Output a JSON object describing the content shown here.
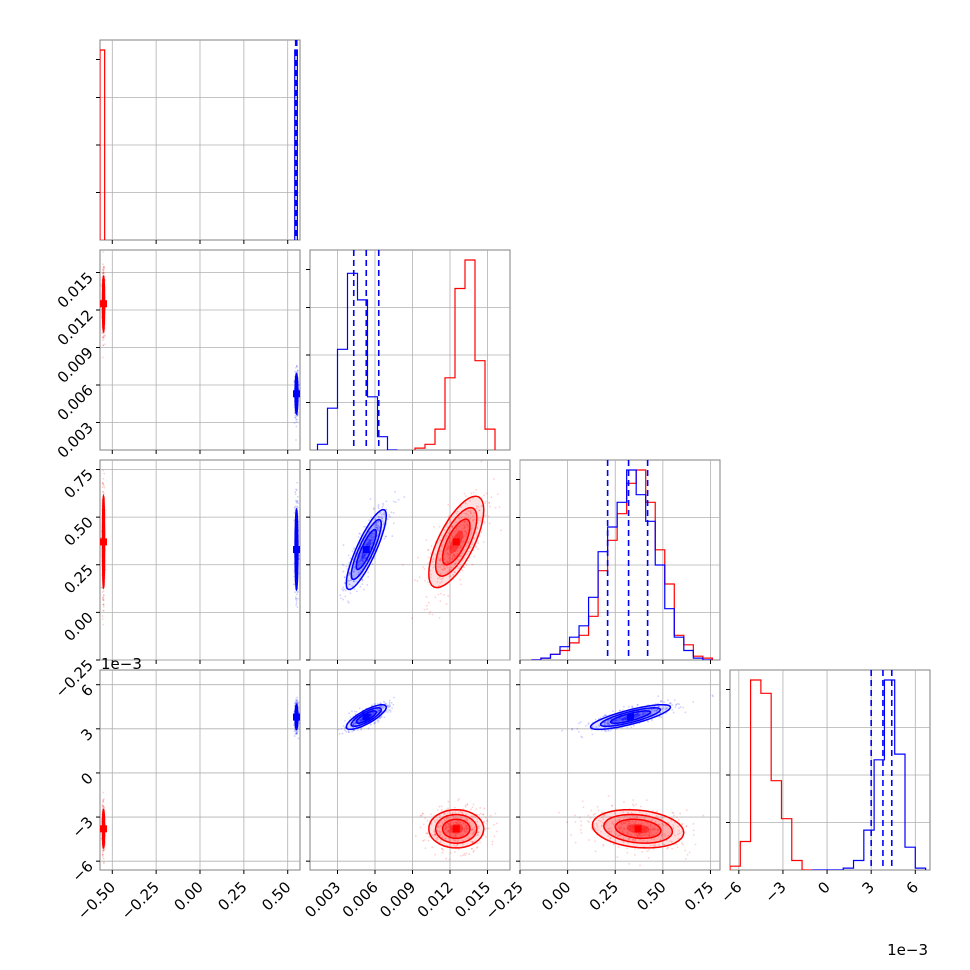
{
  "colors": {
    "series_a": "#ff0000",
    "series_b": "#0000ff",
    "grid": "#b0b0b0",
    "frame": "#808080"
  },
  "chart_data": {
    "type": "corner",
    "grid": true,
    "parameters": [
      {
        "range": [
          -0.57,
          0.57
        ],
        "ticks": [
          -0.5,
          -0.25,
          0.0,
          0.25,
          0.5
        ],
        "tick_labels": [
          "−0.50",
          "−0.25",
          "0.00",
          "0.25",
          "0.50"
        ],
        "offset_label": ""
      },
      {
        "range": [
          0.0008,
          0.0168
        ],
        "ticks": [
          0.003,
          0.006,
          0.009,
          0.012,
          0.015
        ],
        "tick_labels": [
          "0.003",
          "0.006",
          "0.009",
          "0.012",
          "0.015"
        ],
        "offset_label": ""
      },
      {
        "range": [
          -0.25,
          0.8
        ],
        "ticks": [
          -0.25,
          0.0,
          0.25,
          0.5,
          0.75
        ],
        "tick_labels": [
          "−0.25",
          "0.00",
          "0.25",
          "0.50",
          "0.75"
        ],
        "offset_label": ""
      },
      {
        "range": [
          -6.6,
          7.0
        ],
        "ticks": [
          -6,
          -3,
          0,
          3,
          6
        ],
        "tick_labels": [
          "−6",
          "−3",
          "0",
          "3",
          "6"
        ],
        "offset_label": "1e−3"
      }
    ],
    "series": [
      {
        "color": "#ff0000",
        "means": [
          -0.55,
          0.0125,
          0.37,
          -3.8
        ],
        "sds": [
          0.003,
          0.0011,
          0.12,
          0.65
        ],
        "cross": {
          "1-2": 0.7,
          "1-3": 0.0,
          "2-3": -0.2
        },
        "hist": [
          {
            "edges": [
              -0.57,
              -0.5435
            ],
            "counts": [
              1.0
            ]
          },
          {
            "edges": [
              0.0092,
              0.01,
              0.0108,
              0.0116,
              0.0124,
              0.0132,
              0.014,
              0.0148,
              0.0156
            ],
            "counts": [
              0.01,
              0.03,
              0.11,
              0.38,
              0.85,
              1.0,
              0.47,
              0.11
            ]
          },
          {
            "edges": [
              -0.19,
              -0.14,
              -0.09,
              -0.04,
              0.01,
              0.06,
              0.11,
              0.16,
              0.21,
              0.26,
              0.31,
              0.36,
              0.41,
              0.46,
              0.51,
              0.56,
              0.61,
              0.66,
              0.71,
              0.76
            ],
            "counts": [
              0.0,
              0.01,
              0.03,
              0.05,
              0.09,
              0.13,
              0.23,
              0.47,
              0.63,
              0.77,
              0.93,
              1.0,
              0.83,
              0.58,
              0.4,
              0.13,
              0.08,
              0.02,
              0.01
            ]
          },
          {
            "edges": [
              -6.6,
              -5.9,
              -5.2,
              -4.5,
              -3.8,
              -3.1,
              -2.4,
              -1.7,
              -1.0
            ],
            "counts": [
              0.02,
              0.15,
              1.0,
              0.93,
              0.47,
              0.27,
              0.05,
              0.0
            ]
          }
        ]
      },
      {
        "color": "#0000ff",
        "means": [
          0.55,
          0.0053,
          0.33,
          3.8
        ],
        "sds": [
          0.004,
          0.0008,
          0.105,
          0.42
        ],
        "cross": {
          "1-2": 0.85,
          "1-3": 0.8,
          "2-3": 0.8
        },
        "hist": [
          {
            "edges": [
              0.54,
              0.555
            ],
            "counts": [
              1.0
            ]
          },
          {
            "edges": [
              0.0014,
              0.0022,
              0.003,
              0.0038,
              0.0046,
              0.0054,
              0.0062,
              0.007,
              0.0078
            ],
            "counts": [
              0.03,
              0.22,
              0.53,
              0.93,
              0.79,
              0.28,
              0.07,
              0.0
            ]
          },
          {
            "edges": [
              -0.19,
              -0.14,
              -0.09,
              -0.04,
              0.01,
              0.06,
              0.11,
              0.16,
              0.21,
              0.26,
              0.31,
              0.36,
              0.41,
              0.46,
              0.51,
              0.56,
              0.61,
              0.66,
              0.71,
              0.76
            ],
            "counts": [
              0.0,
              0.01,
              0.03,
              0.07,
              0.12,
              0.18,
              0.33,
              0.57,
              0.7,
              0.83,
              1.0,
              0.87,
              0.73,
              0.5,
              0.27,
              0.12,
              0.05,
              0.01,
              0.0
            ]
          },
          {
            "edges": [
              -1.0,
              -0.3,
              0.4,
              1.1,
              1.8,
              2.5,
              3.2,
              3.9,
              4.6,
              5.3,
              6.0,
              6.7
            ],
            "counts": [
              0.0,
              0.0,
              0.0,
              0.01,
              0.05,
              0.21,
              0.58,
              1.0,
              0.61,
              0.12,
              0.01
            ]
          }
        ],
        "quantiles": [
          [
            0.5454,
            0.5475,
            0.5495,
            0.5515
          ],
          [
            0.0043,
            0.0053,
            0.0063
          ],
          [
            0.21,
            0.32,
            0.42
          ],
          [
            3.0,
            3.8,
            4.4
          ]
        ]
      }
    ]
  }
}
